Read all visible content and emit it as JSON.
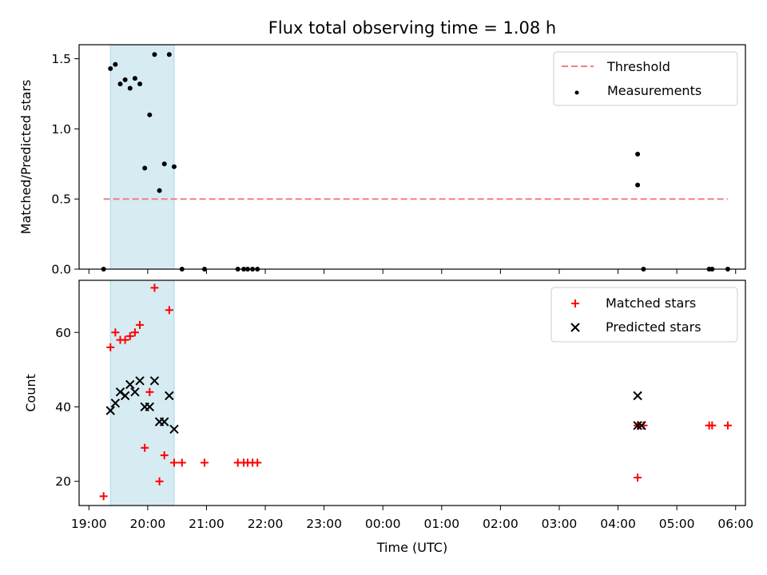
{
  "chart_data": [
    {
      "type": "scatter",
      "title": "Flux total observing time = 1.08 h",
      "xlabel": "",
      "ylabel": "Matched/Predicted stars",
      "ylim": [
        0,
        1.6
      ],
      "yticks": [
        "0.0",
        "0.5",
        "1.0",
        "1.5"
      ],
      "legend": "top-right",
      "legend_entries": [
        "Threshold",
        "Measurements"
      ],
      "highlight_span": [
        "19:22",
        "20:27"
      ],
      "threshold": {
        "name": "Threshold",
        "value": 0.5,
        "x": [
          "19:15",
          "05:52"
        ],
        "color": "#f08080"
      },
      "series": [
        {
          "name": "Measurements",
          "color": "#000000",
          "points": [
            [
              "19:15",
              0.0
            ],
            [
              "19:22",
              1.43
            ],
            [
              "19:27",
              1.46
            ],
            [
              "19:32",
              1.32
            ],
            [
              "19:37",
              1.35
            ],
            [
              "19:42",
              1.29
            ],
            [
              "19:47",
              1.36
            ],
            [
              "19:52",
              1.32
            ],
            [
              "19:57",
              0.72
            ],
            [
              "20:02",
              1.1
            ],
            [
              "20:07",
              1.53
            ],
            [
              "20:12",
              0.56
            ],
            [
              "20:17",
              0.75
            ],
            [
              "20:22",
              1.53
            ],
            [
              "20:27",
              0.73
            ],
            [
              "20:35",
              0.0
            ],
            [
              "20:58",
              0.0
            ],
            [
              "21:32",
              0.0
            ],
            [
              "21:38",
              0.0
            ],
            [
              "21:42",
              0.0
            ],
            [
              "21:47",
              0.0
            ],
            [
              "21:52",
              0.0
            ],
            [
              "04:20",
              0.82
            ],
            [
              "04:20",
              0.6
            ],
            [
              "04:26",
              0.0
            ],
            [
              "05:33",
              0.0
            ],
            [
              "05:36",
              0.0
            ],
            [
              "05:52",
              0.0
            ]
          ]
        }
      ]
    },
    {
      "type": "scatter",
      "title": "",
      "xlabel": "Time (UTC)",
      "ylabel": "Count",
      "ylim": [
        13.5,
        74
      ],
      "yticks": [
        "20",
        "40",
        "60"
      ],
      "xticks": [
        "19:00",
        "20:00",
        "21:00",
        "22:00",
        "23:00",
        "00:00",
        "01:00",
        "02:00",
        "03:00",
        "04:00",
        "05:00",
        "06:00"
      ],
      "xlim": [
        "18:50",
        "06:10"
      ],
      "legend": "top-right",
      "legend_entries": [
        "Matched stars",
        "Predicted stars"
      ],
      "highlight_span": [
        "19:22",
        "20:27"
      ],
      "series": [
        {
          "name": "Matched stars",
          "color": "#ff0000",
          "marker": "+",
          "points": [
            [
              "19:15",
              16
            ],
            [
              "19:22",
              56
            ],
            [
              "19:27",
              60
            ],
            [
              "19:32",
              58
            ],
            [
              "19:37",
              58
            ],
            [
              "19:42",
              59
            ],
            [
              "19:47",
              60
            ],
            [
              "19:52",
              62
            ],
            [
              "19:57",
              29
            ],
            [
              "20:02",
              44
            ],
            [
              "20:07",
              72
            ],
            [
              "20:12",
              20
            ],
            [
              "20:17",
              27
            ],
            [
              "20:22",
              66
            ],
            [
              "20:27",
              25
            ],
            [
              "20:35",
              25
            ],
            [
              "20:58",
              25
            ],
            [
              "21:32",
              25
            ],
            [
              "21:38",
              25
            ],
            [
              "21:42",
              25
            ],
            [
              "21:47",
              25
            ],
            [
              "21:52",
              25
            ],
            [
              "04:20",
              21
            ],
            [
              "04:20",
              35
            ],
            [
              "04:26",
              35
            ],
            [
              "05:33",
              35
            ],
            [
              "05:36",
              35
            ],
            [
              "05:52",
              35
            ]
          ]
        },
        {
          "name": "Predicted stars",
          "color": "#000000",
          "marker": "x",
          "points": [
            [
              "19:22",
              39
            ],
            [
              "19:27",
              41
            ],
            [
              "19:32",
              44
            ],
            [
              "19:37",
              43
            ],
            [
              "19:42",
              46
            ],
            [
              "19:47",
              44
            ],
            [
              "19:52",
              47
            ],
            [
              "19:57",
              40
            ],
            [
              "20:02",
              40
            ],
            [
              "20:07",
              47
            ],
            [
              "20:12",
              36
            ],
            [
              "20:17",
              36
            ],
            [
              "20:22",
              43
            ],
            [
              "20:27",
              34
            ],
            [
              "04:20",
              43
            ],
            [
              "04:20",
              35
            ],
            [
              "04:24",
              35
            ]
          ]
        }
      ]
    }
  ],
  "colors": {
    "span": "#add8e6",
    "threshold": "#f08080",
    "measurements": "#000000",
    "matched": "#ff0000",
    "predicted": "#000000"
  }
}
